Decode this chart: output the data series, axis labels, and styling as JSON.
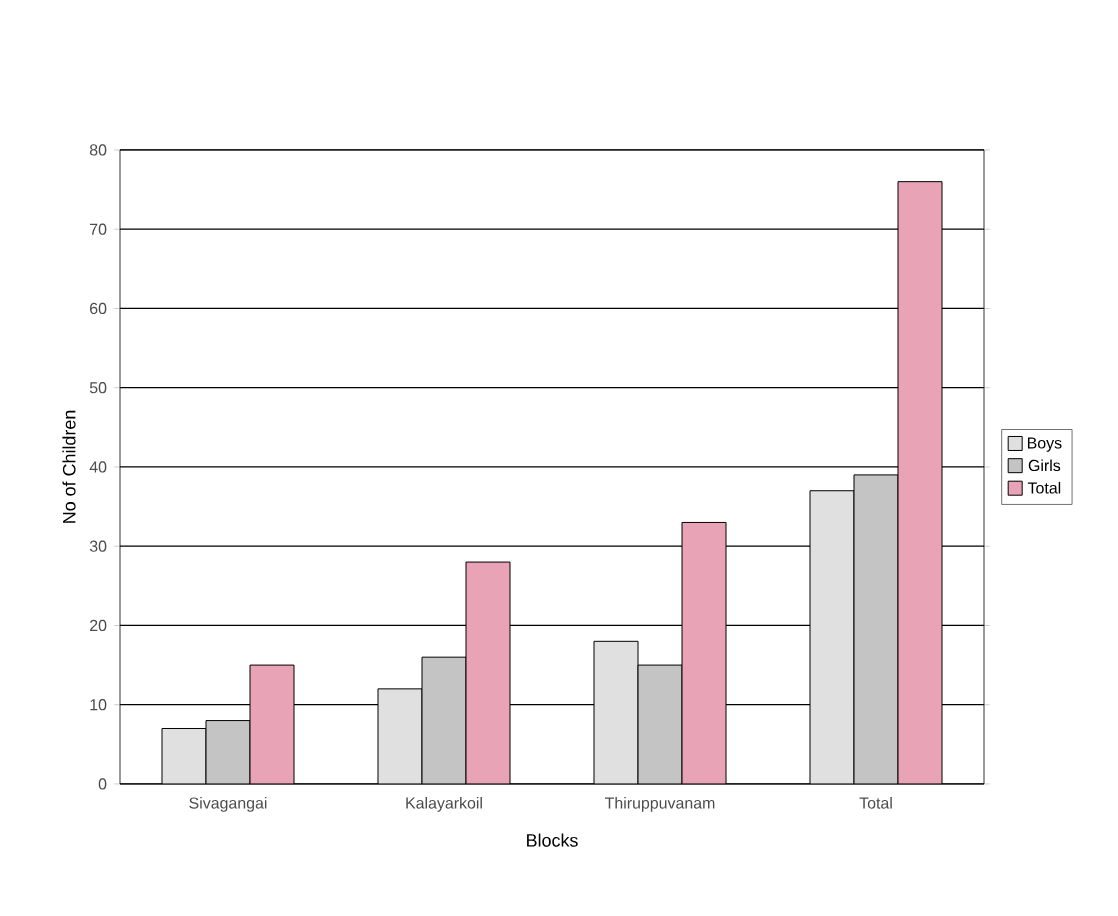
{
  "chart_data": {
    "type": "bar",
    "xlabel": "Blocks",
    "ylabel": "No of Children",
    "categories": [
      "Sivagangai",
      "Kalayarkoil",
      "Thiruppuvanam",
      "Total"
    ],
    "series": [
      {
        "name": "Boys",
        "color": "#e0e0e0",
        "values": [
          7,
          12,
          18,
          37
        ]
      },
      {
        "name": "Girls",
        "color": "#c4c4c4",
        "values": [
          8,
          16,
          15,
          39
        ]
      },
      {
        "name": "Total",
        "color": "#e8a3b6",
        "values": [
          15,
          28,
          33,
          76
        ]
      }
    ],
    "ylim": [
      0,
      80
    ],
    "yticks": [
      0,
      10,
      20,
      30,
      40,
      50,
      60,
      70,
      80
    ],
    "grid": "y",
    "legend": "right"
  }
}
